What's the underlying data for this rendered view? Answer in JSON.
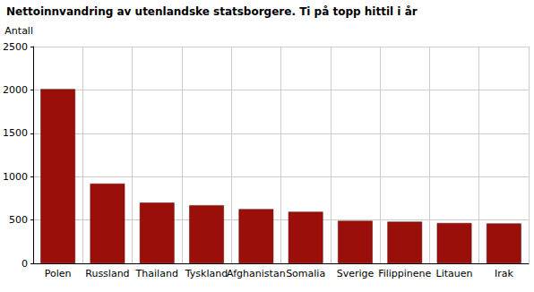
{
  "chart_data": {
    "type": "bar",
    "title": "Nettoinnvandring av utenlandske statsborgere. Ti på topp hittil i år",
    "y_label": "Antall",
    "categories": [
      "Polen",
      "Russland",
      "Thailand",
      "Tyskland",
      "Afghanistan",
      "Somalia",
      "Sverige",
      "Filippinene",
      "Litauen",
      "Irak"
    ],
    "values": [
      2010,
      920,
      700,
      670,
      625,
      595,
      490,
      480,
      465,
      460
    ],
    "color": "#9b0f0a",
    "ylim": [
      0,
      2500
    ],
    "yticks": [
      0,
      500,
      1000,
      1500,
      2000,
      2500
    ],
    "grid": true
  }
}
